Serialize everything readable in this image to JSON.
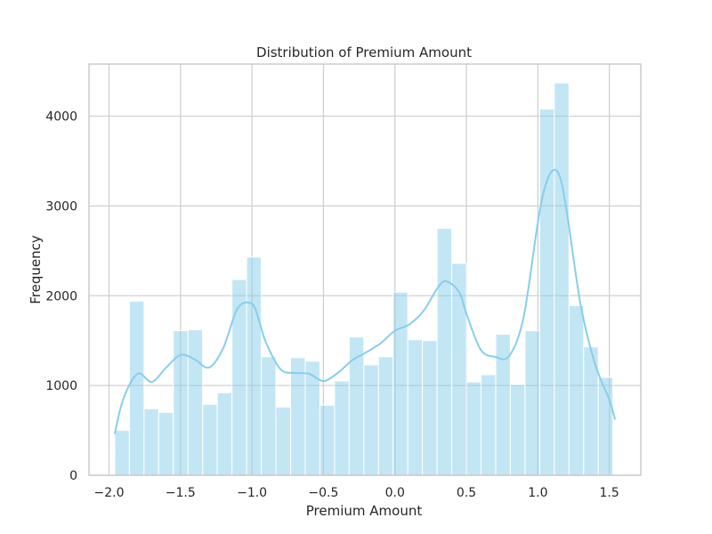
{
  "chart_data": {
    "type": "bar",
    "title": "Distribution of Premium Amount",
    "xlabel": "Premium Amount",
    "ylabel": "Frequency",
    "xlim": [
      -2.14,
      1.72
    ],
    "ylim": [
      0,
      4580
    ],
    "grid": true,
    "x_ticks": [
      {
        "value": -2.0,
        "label": "−2.0"
      },
      {
        "value": -1.5,
        "label": "−1.5"
      },
      {
        "value": -1.0,
        "label": "−1.0"
      },
      {
        "value": -0.5,
        "label": "−0.5"
      },
      {
        "value": 0.0,
        "label": "0.0"
      },
      {
        "value": 0.5,
        "label": "0.5"
      },
      {
        "value": 1.0,
        "label": "1.0"
      },
      {
        "value": 1.5,
        "label": "1.5"
      }
    ],
    "y_ticks": [
      {
        "value": 0,
        "label": "0"
      },
      {
        "value": 1000,
        "label": "1000"
      },
      {
        "value": 2000,
        "label": "2000"
      },
      {
        "value": 3000,
        "label": "3000"
      },
      {
        "value": 4000,
        "label": "4000"
      }
    ],
    "bins": {
      "start": -1.96,
      "width": 0.1025,
      "counts": [
        500,
        1940,
        740,
        700,
        1610,
        1620,
        790,
        920,
        2180,
        2430,
        1320,
        760,
        1310,
        1270,
        780,
        1050,
        1540,
        1230,
        1320,
        2040,
        1510,
        1500,
        2750,
        2360,
        1040,
        1120,
        1570,
        1010,
        1610,
        4080,
        4370,
        1890,
        1430,
        1090
      ]
    },
    "kde": {
      "x": [
        -1.96,
        -1.9,
        -1.8,
        -1.7,
        -1.6,
        -1.5,
        -1.4,
        -1.3,
        -1.2,
        -1.1,
        -1.0,
        -0.95,
        -0.9,
        -0.8,
        -0.7,
        -0.6,
        -0.5,
        -0.4,
        -0.3,
        -0.2,
        -0.1,
        0.0,
        0.1,
        0.2,
        0.3,
        0.36,
        0.45,
        0.5,
        0.6,
        0.7,
        0.8,
        0.9,
        1.0,
        1.05,
        1.1,
        1.15,
        1.2,
        1.3,
        1.4,
        1.5,
        1.54
      ],
      "y": [
        460,
        850,
        1130,
        1040,
        1200,
        1340,
        1290,
        1200,
        1420,
        1860,
        1910,
        1720,
        1470,
        1180,
        1140,
        1130,
        1050,
        1140,
        1280,
        1370,
        1470,
        1610,
        1680,
        1830,
        2090,
        2160,
        2040,
        1800,
        1400,
        1320,
        1330,
        1760,
        2820,
        3210,
        3390,
        3340,
        2960,
        1890,
        1240,
        840,
        620
      ]
    },
    "colors": {
      "bar_fill": "#87ceeb",
      "bar_opacity": 0.5,
      "kde_line": "#87ceeb",
      "grid": "#d0d0d0",
      "spine": "#cccccc",
      "text": "#262626"
    }
  }
}
